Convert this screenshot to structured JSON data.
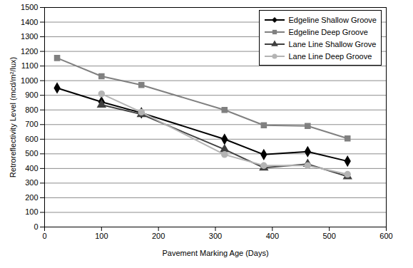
{
  "chart_data": {
    "type": "line",
    "x_label": "Pavement Marking Age (Days)",
    "y_label": "Retroreflectivity Level (mcd/m²/lux)",
    "x": [
      22,
      100,
      170,
      316,
      385,
      462,
      532
    ],
    "series": [
      {
        "name": "Edgeline Shallow Groove",
        "color": "#000000",
        "marker": "diamond",
        "values": [
          950,
          855,
          780,
          600,
          495,
          515,
          450
        ]
      },
      {
        "name": "Edgeline Deep Groove",
        "color": "#808080",
        "marker": "square",
        "values": [
          1155,
          1030,
          970,
          800,
          695,
          690,
          605
        ]
      },
      {
        "name": "Lane Line Shallow Grove",
        "color": "#404040",
        "marker": "triangle",
        "values": [
          null,
          835,
          770,
          530,
          405,
          430,
          345
        ]
      },
      {
        "name": "Lane Line Deep Groove",
        "color": "#b4b4b4",
        "marker": "circle",
        "values": [
          null,
          910,
          785,
          495,
          420,
          420,
          360
        ]
      }
    ],
    "xlim": [
      0,
      600
    ],
    "xticks": [
      0,
      100,
      200,
      300,
      400,
      500,
      600
    ],
    "ylim": [
      0,
      1500
    ],
    "yticks": [
      0,
      100,
      200,
      300,
      400,
      500,
      600,
      700,
      800,
      900,
      1000,
      1100,
      1200,
      1300,
      1400,
      1500
    ],
    "grid": true,
    "legend": "top-right"
  }
}
